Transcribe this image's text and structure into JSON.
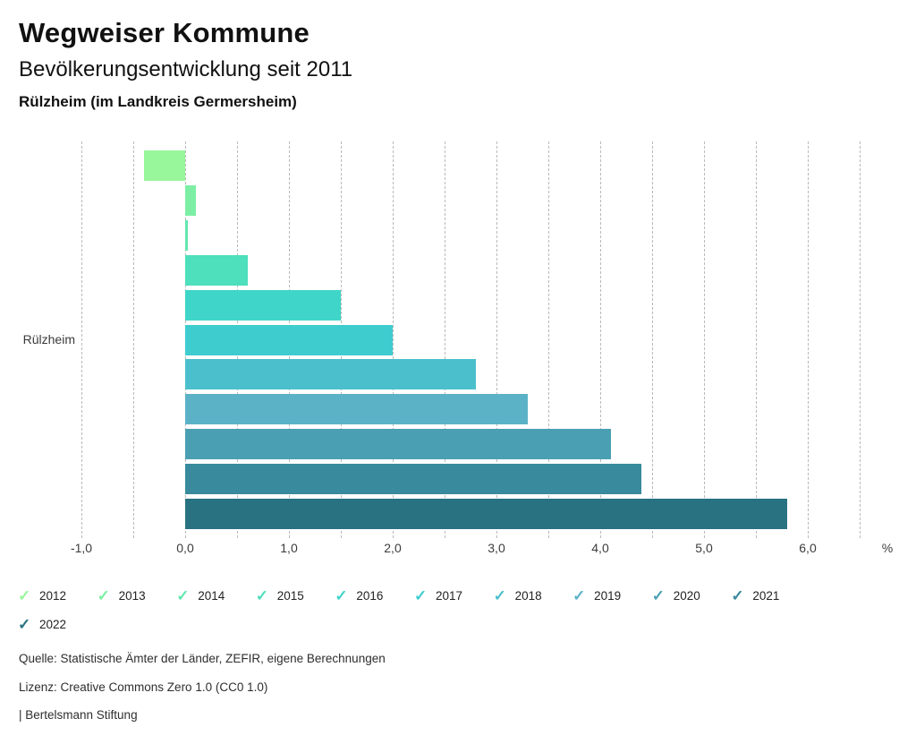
{
  "header": {
    "app_title": "Wegweiser Kommune"
  },
  "chart_data": {
    "type": "bar",
    "orientation": "horizontal",
    "title": "Bevölkerungsentwicklung seit 2011",
    "region": "Rülzheim (im Landkreis Germersheim)",
    "category_label": "Rülzheim",
    "unit": "%",
    "xlim": [
      -1.0,
      6.5
    ],
    "grid_step": 0.5,
    "grid_style": "vertical dashed",
    "x_ticks": [
      {
        "value": -1,
        "label": "-1,0"
      },
      {
        "value": 0,
        "label": "0,0"
      },
      {
        "value": 1,
        "label": "1,0"
      },
      {
        "value": 2,
        "label": "2,0"
      },
      {
        "value": 3,
        "label": "3,0"
      },
      {
        "value": 4,
        "label": "4,0"
      },
      {
        "value": 5,
        "label": "5,0"
      },
      {
        "value": 6,
        "label": "6,0"
      }
    ],
    "series": [
      {
        "year": "2012",
        "value": -0.4,
        "color": "#98f69b"
      },
      {
        "year": "2013",
        "value": 0.1,
        "color": "#7cefa5"
      },
      {
        "year": "2014",
        "value": 0.0,
        "color": "#63e7b0"
      },
      {
        "year": "2015",
        "value": 0.6,
        "color": "#4edfbc"
      },
      {
        "year": "2016",
        "value": 1.5,
        "color": "#3fd5c9"
      },
      {
        "year": "2017",
        "value": 2.0,
        "color": "#3fcccf"
      },
      {
        "year": "2018",
        "value": 2.8,
        "color": "#4bc0cc"
      },
      {
        "year": "2019",
        "value": 3.3,
        "color": "#5bb2c7"
      },
      {
        "year": "2020",
        "value": 4.1,
        "color": "#4aa0b2"
      },
      {
        "year": "2021",
        "value": 4.4,
        "color": "#388a9c"
      },
      {
        "year": "2022",
        "value": 5.8,
        "color": "#287282"
      }
    ],
    "legend_position": "bottom"
  },
  "legend": {
    "check_icon": "✓",
    "items_per_row": 10
  },
  "footer": {
    "source": "Quelle: Statistische Ämter der Länder, ZEFIR, eigene Berechnungen",
    "license": "Lizenz: Creative Commons Zero 1.0 (CC0 1.0)",
    "attribution": "| Bertelsmann Stiftung"
  }
}
